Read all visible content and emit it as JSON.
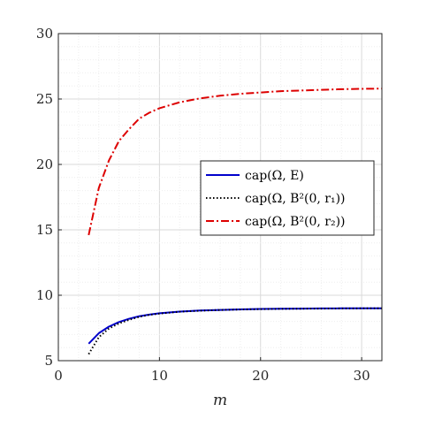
{
  "chart_data": {
    "type": "line",
    "title": "",
    "xlabel": "m",
    "ylabel": "",
    "xlim": [
      0,
      32
    ],
    "ylim": [
      5,
      30
    ],
    "xticks": [
      0,
      10,
      20,
      30
    ],
    "yticks": [
      5,
      10,
      15,
      20,
      25,
      30
    ],
    "grid": "on (major and minor)",
    "legend_position": "right",
    "series": [
      {
        "name": "cap(Ω, E)",
        "color": "#0000cc",
        "style": "solid",
        "x": [
          3,
          4,
          5,
          6,
          7,
          8,
          9,
          10,
          12,
          14,
          16,
          18,
          20,
          22,
          24,
          26,
          28,
          30,
          32
        ],
        "y": [
          6.3,
          7.1,
          7.6,
          7.95,
          8.2,
          8.4,
          8.52,
          8.62,
          8.75,
          8.83,
          8.88,
          8.92,
          8.95,
          8.97,
          8.98,
          8.99,
          9.0,
          9.0,
          9.01
        ]
      },
      {
        "name": "cap(Ω, B²(0, r₁))",
        "color": "#000000",
        "style": "dotted",
        "x": [
          3,
          4,
          5,
          6,
          7,
          8,
          9,
          10,
          12,
          14,
          16,
          18,
          20,
          22,
          24,
          26,
          28,
          30,
          32
        ],
        "y": [
          5.5,
          6.8,
          7.45,
          7.85,
          8.12,
          8.35,
          8.5,
          8.6,
          8.74,
          8.82,
          8.87,
          8.91,
          8.94,
          8.96,
          8.97,
          8.98,
          8.99,
          9.0,
          9.0
        ]
      },
      {
        "name": "cap(Ω, B²(0, r₂))",
        "color": "#dd0000",
        "style": "dashdot",
        "x": [
          3,
          4,
          5,
          6,
          7,
          8,
          9,
          10,
          12,
          14,
          16,
          18,
          20,
          22,
          24,
          26,
          28,
          30,
          32
        ],
        "y": [
          14.6,
          18.2,
          20.3,
          21.8,
          22.7,
          23.5,
          23.95,
          24.3,
          24.75,
          25.05,
          25.25,
          25.4,
          25.5,
          25.6,
          25.65,
          25.7,
          25.75,
          25.78,
          25.8
        ]
      }
    ]
  }
}
